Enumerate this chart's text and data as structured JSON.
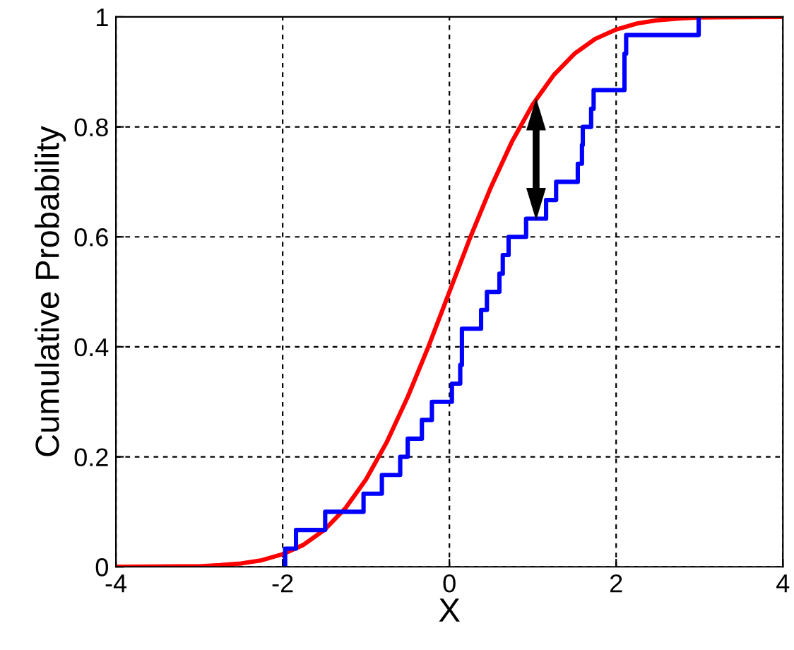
{
  "chart_data": {
    "type": "line",
    "xlabel": "X",
    "ylabel": "Cumulative Probability",
    "series": [
      {
        "type": "line",
        "color": "#ff0000",
        "x": [
          -4,
          -3,
          -2.75,
          -2.5,
          -2.25,
          -2,
          -1.75,
          -1.5,
          -1.25,
          -1,
          -0.75,
          -0.5,
          -0.25,
          0,
          0.25,
          0.5,
          0.75,
          1,
          1.25,
          1.5,
          1.75,
          2,
          2.25,
          2.5,
          2.75,
          3,
          4
        ],
        "values": [
          0,
          0.001,
          0.003,
          0.006,
          0.012,
          0.023,
          0.04,
          0.067,
          0.106,
          0.159,
          0.227,
          0.309,
          0.401,
          0.5,
          0.599,
          0.691,
          0.773,
          0.841,
          0.894,
          0.933,
          0.96,
          0.977,
          0.988,
          0.994,
          0.997,
          0.999,
          1
        ]
      },
      {
        "type": "step",
        "color": "#0000ff",
        "x": [
          -1.97,
          -1.97,
          -1.84,
          -1.49,
          -1.03,
          -0.81,
          -0.59,
          -0.5,
          -0.33,
          -0.21,
          0.03,
          0.13,
          0.15,
          0.38,
          0.45,
          0.6,
          0.64,
          0.71,
          0.92,
          1.16,
          1.28,
          1.54,
          1.59,
          1.6,
          1.7,
          1.73,
          2.1,
          2.12,
          2.99
        ],
        "values": [
          0,
          0.033,
          0.067,
          0.1,
          0.133,
          0.167,
          0.2,
          0.233,
          0.267,
          0.3,
          0.333,
          0.367,
          0.433,
          0.467,
          0.5,
          0.533,
          0.567,
          0.6,
          0.633,
          0.667,
          0.7,
          0.733,
          0.767,
          0.8,
          0.833,
          0.867,
          0.933,
          0.967,
          1
        ]
      }
    ],
    "xlim": [
      -4,
      4
    ],
    "xticks": [
      -4,
      -2,
      0,
      2,
      4
    ],
    "ylim": [
      0,
      1
    ],
    "yticks": [
      0,
      {
        "value": 0.2,
        "label": "0.2"
      },
      {
        "value": 0.4,
        "label": "0.4"
      },
      {
        "value": 0.6,
        "label": "0.6"
      },
      {
        "value": 0.8,
        "label": "0.8"
      },
      1
    ],
    "grid": true,
    "legend": false
  }
}
